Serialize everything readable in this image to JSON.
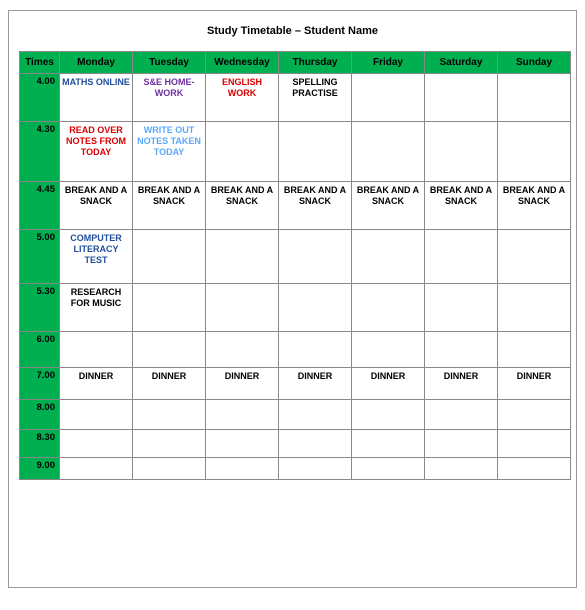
{
  "title": "Study Timetable – Student Name",
  "colors": {
    "header_bg": "#00b050",
    "black": "#000000",
    "blue": "#1f4e9d",
    "red": "#d80000",
    "purple": "#7030a0",
    "lightblue": "#5aa8ff"
  },
  "font": {
    "title_size": 11,
    "header_size": 10,
    "time_size": 9.5,
    "cell_size": 9
  },
  "columns": [
    "Times",
    "Monday",
    "Tuesday",
    "Wednesday",
    "Thursday",
    "Friday",
    "Saturday",
    "Sunday"
  ],
  "rows": [
    {
      "time": "4.00",
      "height": "r-h48",
      "cells": [
        {
          "text": "MATHS ONLINE",
          "color": "blue"
        },
        {
          "text": "S&E HOME-WORK",
          "color": "purple"
        },
        {
          "text": "ENGLISH WORK",
          "color": "red"
        },
        {
          "text": "SPELLING PRACTISE",
          "color": "black"
        },
        {
          "text": ""
        },
        {
          "text": ""
        },
        {
          "text": ""
        }
      ]
    },
    {
      "time": "4.30",
      "height": "r-h60",
      "cells": [
        {
          "text": "READ OVER NOTES FROM TODAY",
          "color": "red"
        },
        {
          "text": "WRITE OUT NOTES TAKEN TODAY",
          "color": "lightblue"
        },
        {
          "text": ""
        },
        {
          "text": ""
        },
        {
          "text": ""
        },
        {
          "text": ""
        },
        {
          "text": ""
        }
      ]
    },
    {
      "time": "4.45",
      "height": "r-h48",
      "cells": [
        {
          "text": "BREAK AND A SNACK",
          "color": "black"
        },
        {
          "text": "BREAK AND A SNACK",
          "color": "black"
        },
        {
          "text": "BREAK AND A SNACK",
          "color": "black"
        },
        {
          "text": "BREAK AND A SNACK",
          "color": "black"
        },
        {
          "text": "BREAK AND A SNACK",
          "color": "black"
        },
        {
          "text": "BREAK AND A SNACK",
          "color": "black"
        },
        {
          "text": "BREAK AND A SNACK",
          "color": "black"
        }
      ]
    },
    {
      "time": "5.00",
      "height": "r-h54",
      "cells": [
        {
          "text": "COMPUTER LITERACY TEST",
          "color": "blue"
        },
        {
          "text": ""
        },
        {
          "text": ""
        },
        {
          "text": ""
        },
        {
          "text": ""
        },
        {
          "text": ""
        },
        {
          "text": ""
        }
      ]
    },
    {
      "time": "5.30",
      "height": "r-h48",
      "cells": [
        {
          "text": "RESEARCH FOR MUSIC",
          "color": "black"
        },
        {
          "text": ""
        },
        {
          "text": ""
        },
        {
          "text": ""
        },
        {
          "text": ""
        },
        {
          "text": ""
        },
        {
          "text": ""
        }
      ]
    },
    {
      "time": "6.00",
      "height": "r-h36",
      "cells": [
        {
          "text": ""
        },
        {
          "text": ""
        },
        {
          "text": ""
        },
        {
          "text": ""
        },
        {
          "text": ""
        },
        {
          "text": ""
        },
        {
          "text": ""
        }
      ]
    },
    {
      "time": "7.00",
      "height": "r-h32",
      "cells": [
        {
          "text": "DINNER",
          "color": "black"
        },
        {
          "text": "DINNER",
          "color": "black"
        },
        {
          "text": "DINNER",
          "color": "black"
        },
        {
          "text": "DINNER",
          "color": "black"
        },
        {
          "text": "DINNER",
          "color": "black"
        },
        {
          "text": "DINNER",
          "color": "black"
        },
        {
          "text": "DINNER",
          "color": "black"
        }
      ]
    },
    {
      "time": "8.00",
      "height": "r-h30",
      "cells": [
        {
          "text": ""
        },
        {
          "text": ""
        },
        {
          "text": ""
        },
        {
          "text": ""
        },
        {
          "text": ""
        },
        {
          "text": ""
        },
        {
          "text": ""
        }
      ]
    },
    {
      "time": "8.30",
      "height": "r-h28",
      "cells": [
        {
          "text": ""
        },
        {
          "text": ""
        },
        {
          "text": ""
        },
        {
          "text": ""
        },
        {
          "text": ""
        },
        {
          "text": ""
        },
        {
          "text": ""
        }
      ]
    },
    {
      "time": "9.00",
      "height": "r-h22",
      "cells": [
        {
          "text": ""
        },
        {
          "text": ""
        },
        {
          "text": ""
        },
        {
          "text": ""
        },
        {
          "text": ""
        },
        {
          "text": ""
        },
        {
          "text": ""
        }
      ]
    }
  ]
}
